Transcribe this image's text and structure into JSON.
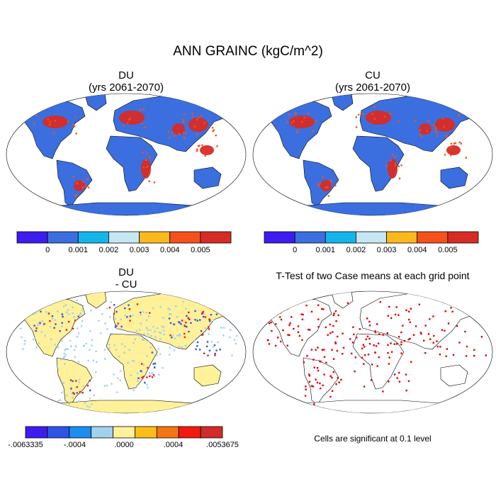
{
  "figure": {
    "title": "ANN GRAINC (kgC/m^2)"
  },
  "panels": [
    {
      "id": "du",
      "title": "DU",
      "subtitle": "(yrs 2061-2070)"
    },
    {
      "id": "cu",
      "title": "CU",
      "subtitle": "(yrs 2061-2070)"
    },
    {
      "id": "diff",
      "title": "DU",
      "subtitle": "- CU"
    },
    {
      "id": "ttest",
      "title": "T-Test of two Case means at each grid point",
      "subtitle": ""
    }
  ],
  "colorbars": {
    "absolute": {
      "colors": [
        "#3d1cf0",
        "#3b6fe0",
        "#15b5ea",
        "#c6e6f3",
        "#fbb91e",
        "#f5511a",
        "#d72b25"
      ],
      "labels": [
        "0",
        "0.001",
        "0.002",
        "0.003",
        "0.004",
        "0.005"
      ]
    },
    "difference": {
      "colors": [
        "#3d1cf0",
        "#2c55e8",
        "#1c8ef0",
        "#9fd2ef",
        "#fff199",
        "#fbbd18",
        "#f57514",
        "#f21a10",
        "#d02b27"
      ],
      "labels": [
        "-.0063335",
        "-.0004",
        ".0000",
        ".0004",
        ".0053675"
      ]
    }
  },
  "map_colors": {
    "ocean": "#ffffff",
    "outline": "#000000",
    "land_absolute": "#3b6fe0",
    "hotspot_absolute": "#d72b25",
    "hotspot_mid": "#f5511a",
    "land_difference": "#fff199",
    "diff_light_blue": "#9fd2ef",
    "significant": "#e00000"
  },
  "note": "Cells are significant at 0.1 level"
}
